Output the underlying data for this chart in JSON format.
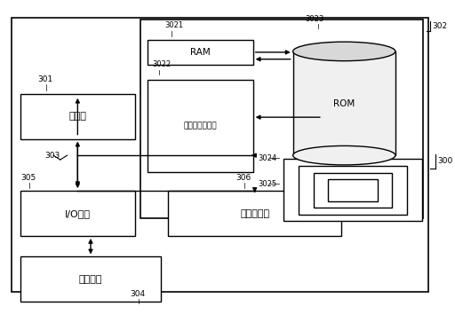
{
  "bg_color": "#ffffff",
  "fig_width": 5.12,
  "fig_height": 3.63,
  "dpi": 100,
  "text": {
    "processor": "处理器",
    "cache": "高速缓存存储器",
    "ram": "RAM",
    "io": "I/O接口",
    "network": "网络适配器",
    "external": "外部设备",
    "rom": "ROM"
  },
  "labels": {
    "300": "300",
    "301": "301",
    "302": "302",
    "303": "303",
    "304": "304",
    "305": "305",
    "306": "306",
    "3021": "3021",
    "3022": "3022",
    "3023": "3023",
    "3024": "3024",
    "3025": "3025"
  }
}
